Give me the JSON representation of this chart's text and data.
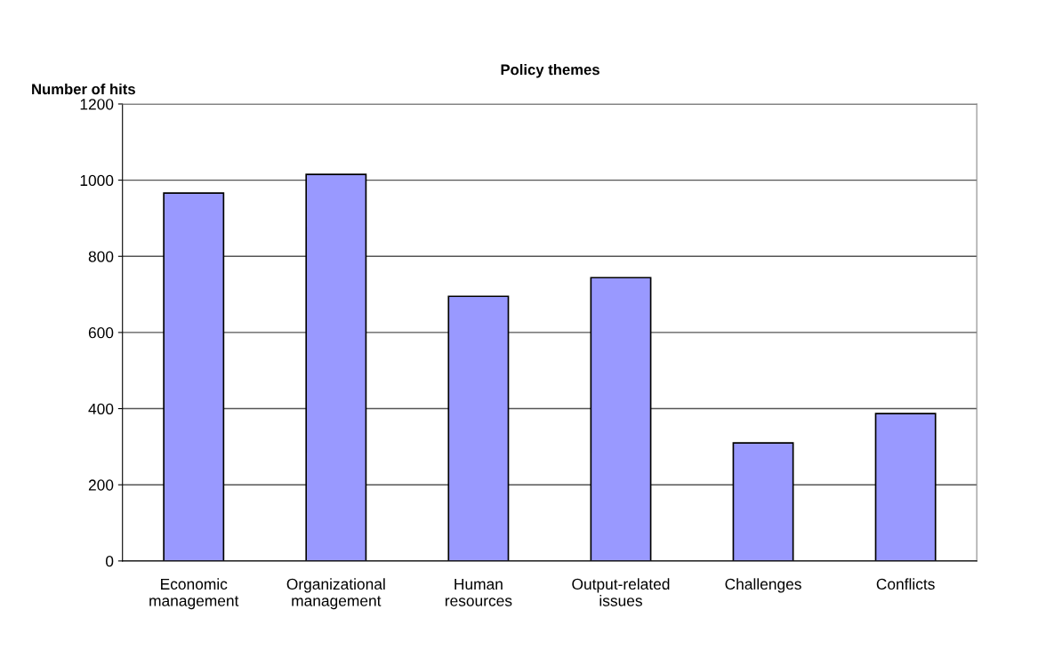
{
  "chart_data": {
    "type": "bar",
    "title": "Policy themes",
    "ylabel": "Number of hits",
    "categories": [
      "Economic\nmanagement",
      "Organizational\nmanagement",
      "Human\nresources",
      "Output-related\nissues",
      "Challenges",
      "Conflicts"
    ],
    "values": [
      966,
      1015,
      695,
      744,
      310,
      387
    ],
    "color": "#9999ff",
    "ylim": [
      0,
      1200
    ],
    "yticks": [
      0,
      200,
      400,
      600,
      800,
      1000,
      1200
    ],
    "grid": "y",
    "legend": false
  }
}
